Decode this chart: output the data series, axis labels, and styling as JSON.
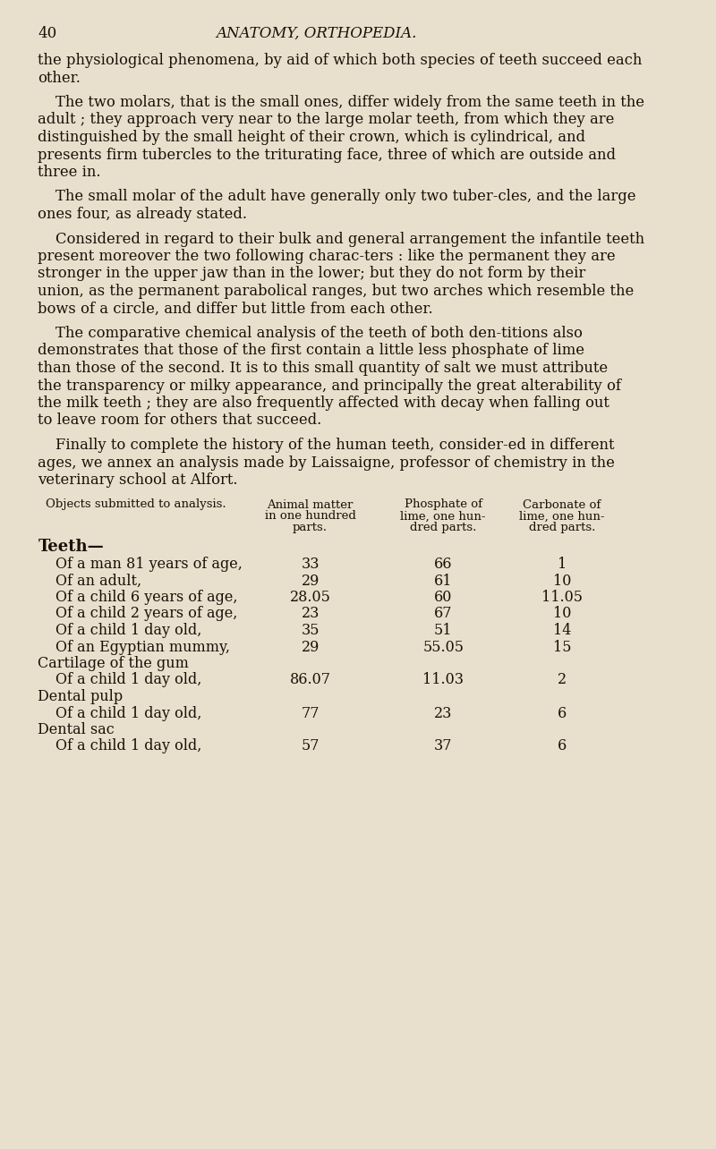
{
  "page_number": "40",
  "header": "ANATOMY, ORTHOPEDIA.",
  "background_color": "#e8e0cc",
  "text_color": "#1a1008",
  "paragraphs": [
    "the  physiological  phenomena, by aid of which both species of teeth succeed each other.",
    "The two molars, that is the small ones, differ widely from the same teeth in  the adult ; they approach very near to the large molar teeth, from  which they are distinguished by the small height of their crown, which is cylindrical, and presents firm tubercles to the triturating face,  three of  which are outside and three in.",
    "The small molar of the adult have generally only two tuber-cles, and the large ones four, as already stated.",
    "Considered in regard  to their bulk and general arrangement the infantile  teeth present  moreover the two following charac-ters :  like the permanent they are stronger in the upper jaw than in the lower; but they do not form by their union, as the permanent parabolical ranges, but two arches which resemble the bows of a circle, and differ but little from each other.",
    "The comparative chemical analysis of the teeth of both den-titions also demonstrates that those of the first contain a little less phosphate of lime  than those of the second.   It is to this small quantity of salt we must attribute the transparency or milky appearance, and principally the great alterability of the milk teeth ; they are also frequently affected with decay when falling out to leave room for others that succeed.",
    "Finally to complete the history of the human teeth, consider-ed in different ages, we annex  an analysis made by Laissaigne, professor of chemistry in  the veterinary school at Alfort."
  ],
  "table": {
    "col_headers": [
      "Objects submitted to analysis.",
      "Animal matter\nin one hundred\nparts.",
      "Phosphate of\nlime, one hun-\ndred parts.",
      "Carbonate of\nlime, one hun-\ndred parts."
    ],
    "section_teeth": "Teeth—",
    "teeth_rows": [
      [
        "Of a man 81 years of age,",
        "33",
        "66",
        "1"
      ],
      [
        "Of an adult,",
        "29",
        "61",
        "10"
      ],
      [
        "Of a child 6 years of age,",
        "28.05",
        "60",
        "11.05"
      ],
      [
        "Of a child 2 years of age,",
        "23",
        "67",
        "10"
      ],
      [
        "Of a child 1 day old,",
        "35",
        "51",
        "14"
      ],
      [
        "Of an Egyptian mummy,",
        "29",
        "55.05",
        "15"
      ]
    ],
    "section_cartilage": "Cartilage of the gum",
    "cartilage_rows": [
      [
        "Of a child 1 day old,",
        "86.07",
        "11.03",
        "2"
      ]
    ],
    "section_pulp": "Dental pulp",
    "pulp_rows": [
      [
        "Of a child 1 day old,",
        "77",
        "23",
        "6"
      ]
    ],
    "section_sac": "Dental sac",
    "sac_rows": [
      [
        "Of a child 1 day old,",
        "57",
        "37",
        "6"
      ]
    ]
  }
}
